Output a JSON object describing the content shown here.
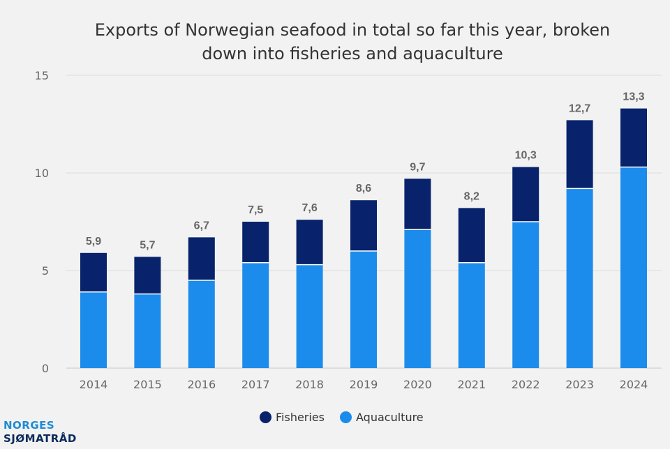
{
  "chart_data": {
    "type": "bar",
    "stacked": true,
    "title_lines": [
      "Exports of Norwegian seafood in total so far this year, broken",
      "down into fisheries and aquaculture"
    ],
    "categories": [
      "2014",
      "2015",
      "2016",
      "2017",
      "2018",
      "2019",
      "2020",
      "2021",
      "2022",
      "2023",
      "2024"
    ],
    "series": [
      {
        "name": "Aquaculture",
        "color": "#1c8cec",
        "values": [
          3.9,
          3.8,
          4.5,
          5.4,
          5.3,
          6.0,
          7.1,
          5.4,
          7.5,
          9.2,
          10.3
        ]
      },
      {
        "name": "Fisheries",
        "color": "#08226b",
        "values": [
          2.0,
          1.9,
          2.2,
          2.1,
          2.3,
          2.6,
          2.6,
          2.8,
          2.8,
          3.5,
          3.0
        ]
      }
    ],
    "total_labels": [
      "5,9",
      "5,7",
      "6,7",
      "7,5",
      "7,6",
      "8,6",
      "9,7",
      "8,2",
      "10,3",
      "12,7",
      "13,3"
    ],
    "totals": [
      5.9,
      5.7,
      6.7,
      7.5,
      7.6,
      8.6,
      9.7,
      8.2,
      10.3,
      12.7,
      13.3
    ],
    "yticks": [
      0,
      5,
      10,
      15
    ],
    "ylim": [
      0,
      15
    ],
    "xlabel": "",
    "ylabel": "",
    "grid": true,
    "legend_position": "bottom-center"
  },
  "legend": {
    "fisheries": "Fisheries",
    "aquaculture": "Aquaculture"
  },
  "colors": {
    "background": "#f1f2f1",
    "fisheries": "#08226b",
    "aquaculture": "#1c8cec",
    "total_label": "#666666",
    "axis_text": "#666666",
    "grid": "#dcdcdc"
  },
  "logo": {
    "line1": "NORGES",
    "line2": "SJØMATRÅD",
    "color1": "#1f8ad6",
    "color2": "#0b2a5c"
  }
}
